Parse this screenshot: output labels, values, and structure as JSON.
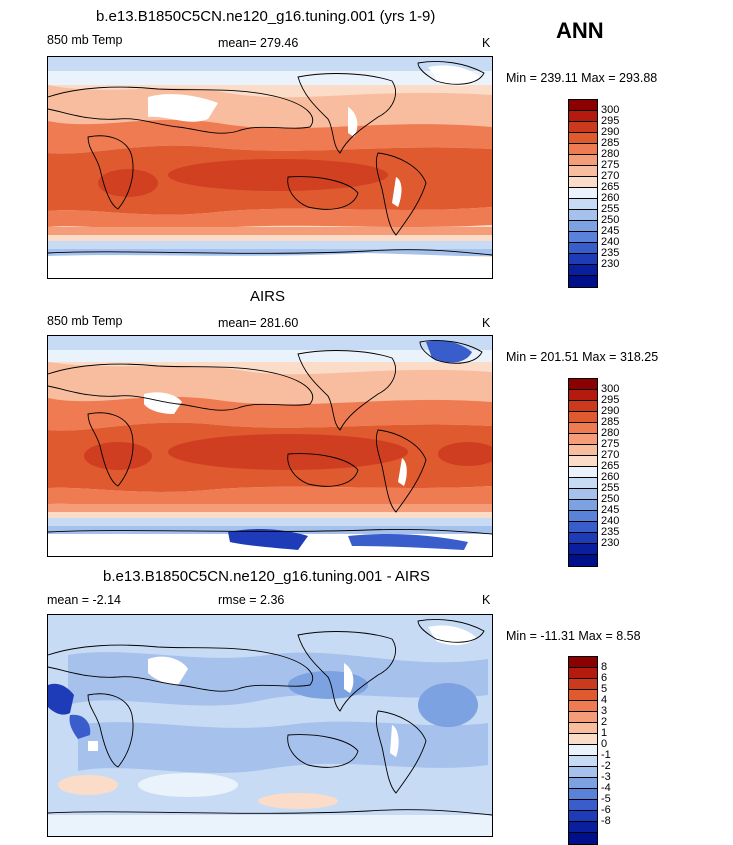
{
  "season": "ANN",
  "colors": {
    "temp_scale": [
      "#8b0000",
      "#b41a0e",
      "#cc3a1e",
      "#e05a2f",
      "#ef7b52",
      "#f59c79",
      "#f8bd9f",
      "#fadcc8",
      "#eaf2fb",
      "#c8dbf4",
      "#a5c1ec",
      "#7da2e2",
      "#5a82d9",
      "#3a5dcc",
      "#1f3cb8",
      "#0a1f9e",
      "#00108a"
    ],
    "diff_scale": [
      "#8b0000",
      "#b41a0e",
      "#cc3a1e",
      "#e05a2f",
      "#ef7b52",
      "#f59c79",
      "#f8bd9f",
      "#fadcc8",
      "#eaf2fb",
      "#c8dbf4",
      "#a5c1ec",
      "#7da2e2",
      "#5a82d9",
      "#3a5dcc",
      "#1f3cb8",
      "#0a1f9e",
      "#00108a"
    ]
  },
  "panels": [
    {
      "title": "b.e13.B1850C5CN.ne120_g16.tuning.001 (yrs 1-9)",
      "left_label": "850 mb Temp",
      "center_label": "mean=  279.46",
      "right_label": "K",
      "minmax": "Min = 239.11  Max = 293.88",
      "ticks": [
        "300",
        "295",
        "290",
        "285",
        "280",
        "275",
        "270",
        "265",
        "260",
        "255",
        "250",
        "245",
        "240",
        "235",
        "230"
      ]
    },
    {
      "title": "AIRS",
      "left_label": "850 mb Temp",
      "center_label": "mean=  281.60",
      "right_label": "K",
      "minmax": "Min = 201.51  Max = 318.25",
      "ticks": [
        "300",
        "295",
        "290",
        "285",
        "280",
        "275",
        "270",
        "265",
        "260",
        "255",
        "250",
        "245",
        "240",
        "235",
        "230"
      ]
    },
    {
      "title": "b.e13.B1850C5CN.ne120_g16.tuning.001 - AIRS",
      "left_label": "mean =   -2.14",
      "center_label": "rmse =    2.36",
      "right_label": "K",
      "minmax": "Min = -11.31  Max =    8.58",
      "ticks": [
        "8",
        "6",
        "5",
        "4",
        "3",
        "2",
        "1",
        "0",
        "-1",
        "-2",
        "-3",
        "-4",
        "-5",
        "-6",
        "-8"
      ]
    }
  ]
}
